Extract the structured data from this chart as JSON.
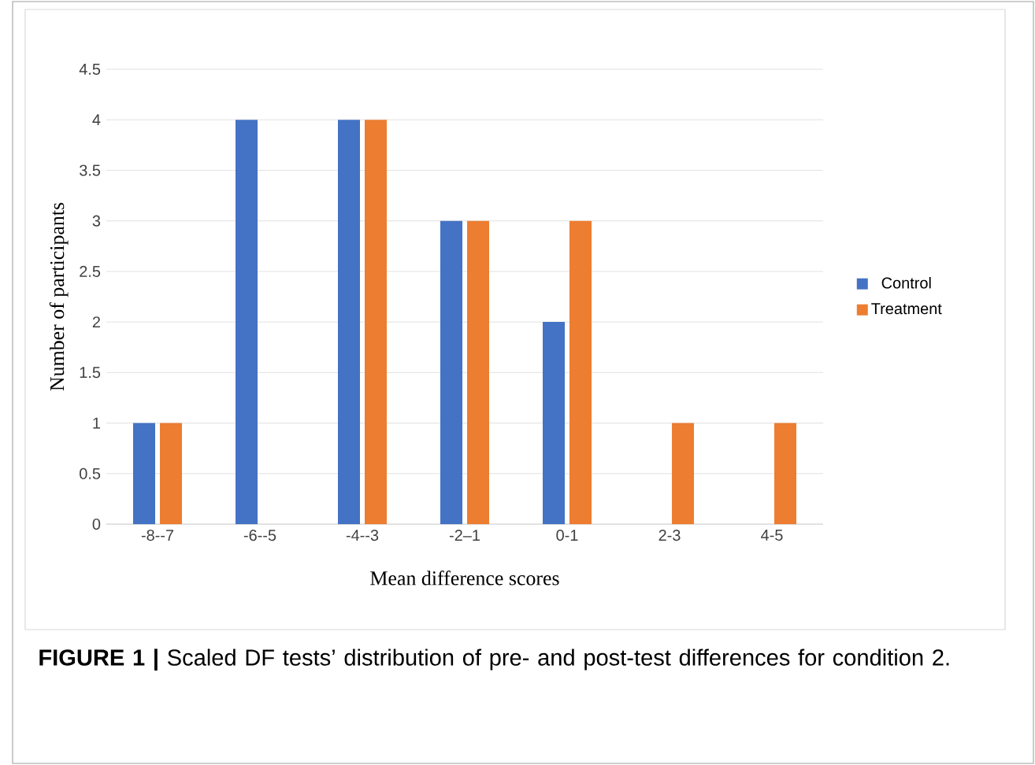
{
  "chart_data": {
    "type": "bar",
    "categories": [
      "-8--7",
      "-6--5",
      "-4--3",
      "-2–1",
      "0-1",
      "2-3",
      "4-5"
    ],
    "series": [
      {
        "name": "Control",
        "color": "#4472c4",
        "values": [
          1,
          4,
          4,
          3,
          2,
          0,
          0
        ]
      },
      {
        "name": "Treatment",
        "color": "#ed7d31",
        "values": [
          1,
          0,
          4,
          3,
          3,
          1,
          1
        ]
      }
    ],
    "xlabel": "Mean difference scores",
    "ylabel": "Number of participants",
    "ylim": [
      0,
      4.5
    ],
    "yticks": [
      0,
      0.5,
      1,
      1.5,
      2,
      2.5,
      3,
      3.5,
      4,
      4.5
    ],
    "grid": "y",
    "legend": "right",
    "annotations": [
      "**FIGURE 1 |** Scaled DF tests’ distribution of pre- and post-test differences for condition 2."
    ]
  }
}
